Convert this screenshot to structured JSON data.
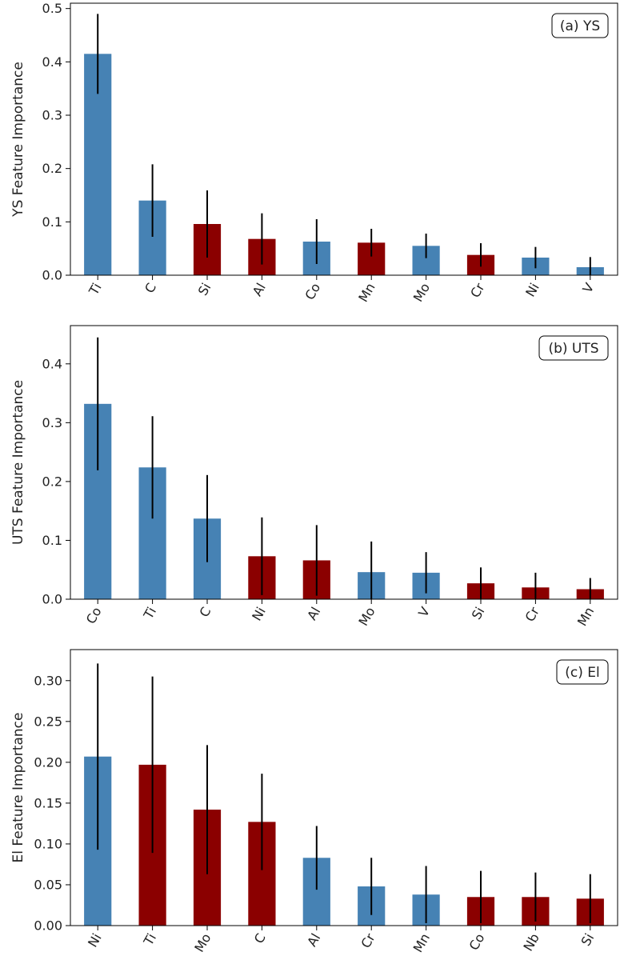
{
  "chart_data": [
    {
      "type": "bar",
      "panel_label": "(a) YS",
      "ylabel": "YS Feature Importance",
      "xlabel": "",
      "categories": [
        "Ti",
        "C",
        "Si",
        "Al",
        "Co",
        "Mn",
        "Mo",
        "Cr",
        "Ni",
        "V"
      ],
      "values": [
        0.415,
        0.14,
        0.096,
        0.068,
        0.063,
        0.061,
        0.055,
        0.038,
        0.033,
        0.015
      ],
      "errors": [
        0.075,
        0.068,
        0.063,
        0.048,
        0.042,
        0.026,
        0.023,
        0.022,
        0.02,
        0.019
      ],
      "bar_colors": [
        "#4682b4",
        "#4682b4",
        "#8b0000",
        "#8b0000",
        "#4682b4",
        "#8b0000",
        "#4682b4",
        "#8b0000",
        "#4682b4",
        "#4682b4"
      ],
      "ylim": [
        0,
        0.51
      ],
      "yticks": [
        0.0,
        0.1,
        0.2,
        0.3,
        0.4,
        0.5
      ],
      "ytick_labels": [
        "0.0",
        "0.1",
        "0.2",
        "0.3",
        "0.4",
        "0.5"
      ],
      "grid": false,
      "legend": "none"
    },
    {
      "type": "bar",
      "panel_label": "(b) UTS",
      "ylabel": "UTS Feature Importance",
      "xlabel": "",
      "categories": [
        "Co",
        "Ti",
        "C",
        "Ni",
        "Al",
        "Mo",
        "V",
        "Si",
        "Cr",
        "Mn"
      ],
      "values": [
        0.332,
        0.224,
        0.137,
        0.073,
        0.066,
        0.046,
        0.045,
        0.027,
        0.02,
        0.017
      ],
      "errors": [
        0.113,
        0.087,
        0.074,
        0.066,
        0.06,
        0.052,
        0.035,
        0.027,
        0.025,
        0.019
      ],
      "bar_colors": [
        "#4682b4",
        "#4682b4",
        "#4682b4",
        "#8b0000",
        "#8b0000",
        "#4682b4",
        "#4682b4",
        "#8b0000",
        "#8b0000",
        "#8b0000"
      ],
      "ylim": [
        0,
        0.465
      ],
      "yticks": [
        0.0,
        0.1,
        0.2,
        0.3,
        0.4
      ],
      "ytick_labels": [
        "0.0",
        "0.1",
        "0.2",
        "0.3",
        "0.4"
      ],
      "grid": false,
      "legend": "none"
    },
    {
      "type": "bar",
      "panel_label": "(c) El",
      "ylabel": "El Feature Importance",
      "xlabel": "",
      "categories": [
        "Ni",
        "Ti",
        "Mo",
        "C",
        "Al",
        "Cr",
        "Mn",
        "Co",
        "Nb",
        "Si"
      ],
      "values": [
        0.207,
        0.197,
        0.142,
        0.127,
        0.083,
        0.048,
        0.038,
        0.035,
        0.035,
        0.033
      ],
      "errors": [
        0.114,
        0.108,
        0.079,
        0.059,
        0.039,
        0.035,
        0.035,
        0.032,
        0.03,
        0.03
      ],
      "bar_colors": [
        "#4682b4",
        "#8b0000",
        "#8b0000",
        "#8b0000",
        "#4682b4",
        "#4682b4",
        "#4682b4",
        "#8b0000",
        "#8b0000",
        "#8b0000"
      ],
      "ylim": [
        0,
        0.338
      ],
      "yticks": [
        0.0,
        0.05,
        0.1,
        0.15,
        0.2,
        0.25,
        0.3
      ],
      "ytick_labels": [
        "0.00",
        "0.05",
        "0.10",
        "0.15",
        "0.20",
        "0.25",
        "0.30"
      ],
      "grid": false,
      "legend": "none"
    }
  ]
}
